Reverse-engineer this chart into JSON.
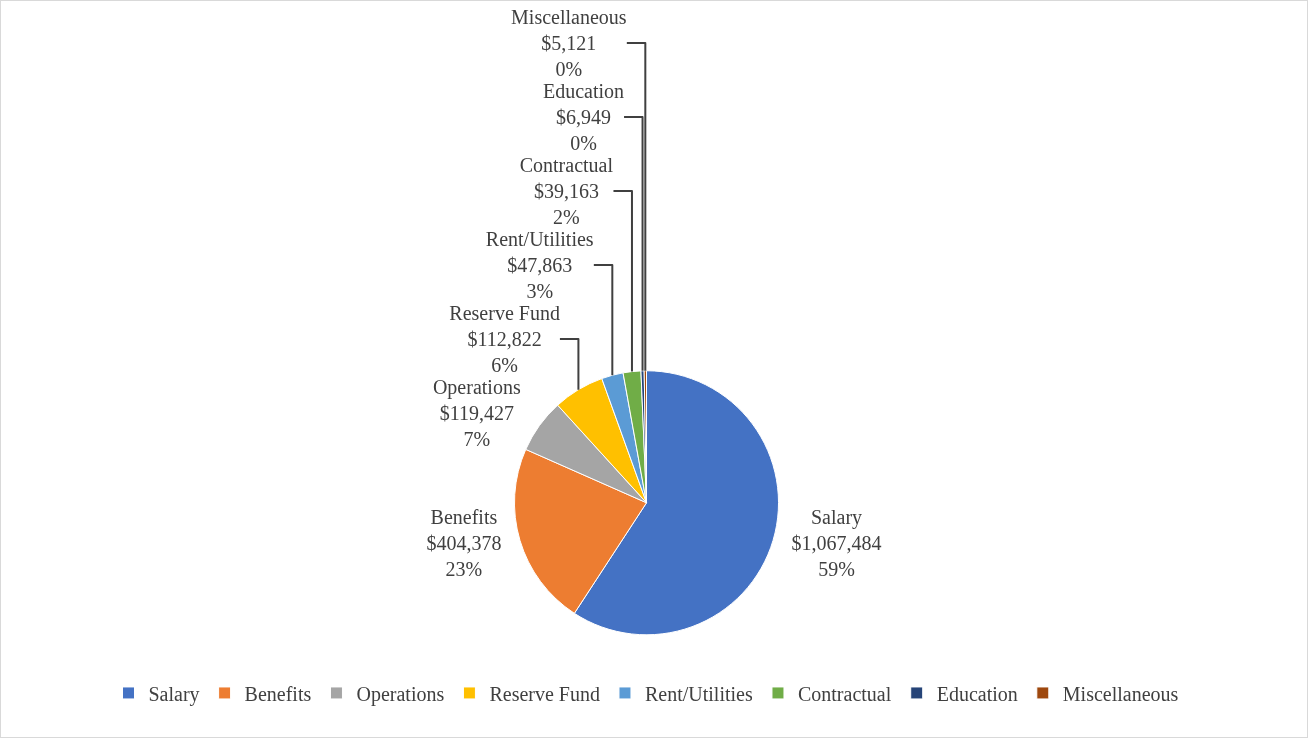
{
  "chart_data": {
    "type": "pie",
    "categories": [
      "Salary",
      "Benefits",
      "Operations",
      "Reserve Fund",
      "Rent/Utilities",
      "Contractual",
      "Education",
      "Miscellaneous"
    ],
    "values": [
      1067484,
      404378,
      119427,
      112822,
      47863,
      39163,
      6949,
      5121
    ],
    "value_labels": [
      "$1,067,484\n59%",
      "$404,378\n23%",
      "$119,427\n7%",
      "$112,822\n6%",
      "$47,863\n3%",
      "$39,163\n2%",
      "$6,949\n0%",
      "$5,121\n0%"
    ],
    "colors": [
      "#4472c4",
      "#ed7d31",
      "#a5a5a5",
      "#ffc000",
      "#5b9bd5",
      "#70ad47",
      "#264478",
      "#9e480e"
    ],
    "legend": "bottom"
  }
}
